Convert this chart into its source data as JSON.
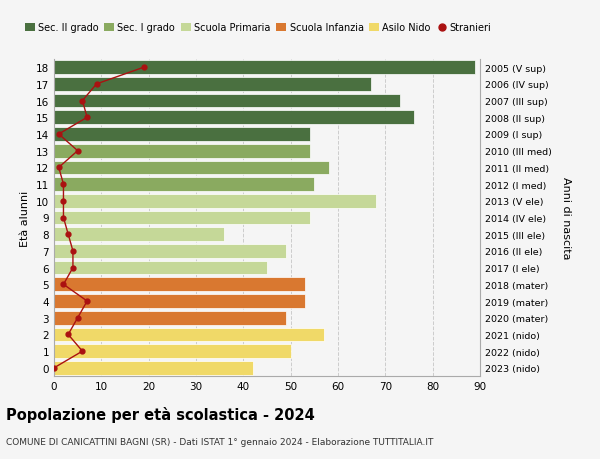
{
  "ages": [
    0,
    1,
    2,
    3,
    4,
    5,
    6,
    7,
    8,
    9,
    10,
    11,
    12,
    13,
    14,
    15,
    16,
    17,
    18
  ],
  "bar_values": [
    42,
    50,
    57,
    49,
    53,
    53,
    45,
    49,
    36,
    54,
    68,
    55,
    58,
    54,
    54,
    76,
    73,
    67,
    89
  ],
  "bar_colors": [
    "#f0d968",
    "#f0d968",
    "#f0d968",
    "#d97830",
    "#d97830",
    "#d97830",
    "#c5d898",
    "#c5d898",
    "#c5d898",
    "#c5d898",
    "#c5d898",
    "#8aaa60",
    "#8aaa60",
    "#8aaa60",
    "#4a7040",
    "#4a7040",
    "#4a7040",
    "#4a7040",
    "#4a7040"
  ],
  "stranieri_values": [
    0,
    6,
    3,
    5,
    7,
    2,
    4,
    4,
    3,
    2,
    2,
    2,
    1,
    5,
    1,
    7,
    6,
    9,
    19
  ],
  "right_labels": [
    "2023 (nido)",
    "2022 (nido)",
    "2021 (nido)",
    "2020 (mater)",
    "2019 (mater)",
    "2018 (mater)",
    "2017 (I ele)",
    "2016 (II ele)",
    "2015 (III ele)",
    "2014 (IV ele)",
    "2013 (V ele)",
    "2012 (I med)",
    "2011 (II med)",
    "2010 (III med)",
    "2009 (I sup)",
    "2008 (II sup)",
    "2007 (III sup)",
    "2006 (IV sup)",
    "2005 (V sup)"
  ],
  "legend_labels": [
    "Sec. II grado",
    "Sec. I grado",
    "Scuola Primaria",
    "Scuola Infanzia",
    "Asilo Nido",
    "Stranieri"
  ],
  "legend_colors": [
    "#4a7040",
    "#8aaa60",
    "#c5d898",
    "#d97830",
    "#f0d968",
    "#aa1111"
  ],
  "title": "Popolazione per età scolastica - 2024",
  "subtitle": "COMUNE DI CANICATTINI BAGNI (SR) - Dati ISTAT 1° gennaio 2024 - Elaborazione TUTTITALIA.IT",
  "ylabel": "Età alunni",
  "right_ylabel": "Anni di nascita",
  "xlim": [
    0,
    90
  ],
  "xticks": [
    0,
    10,
    20,
    30,
    40,
    50,
    60,
    70,
    80,
    90
  ],
  "bg_color": "#f5f5f5",
  "grid_color": "#cccccc",
  "bar_height": 0.82
}
